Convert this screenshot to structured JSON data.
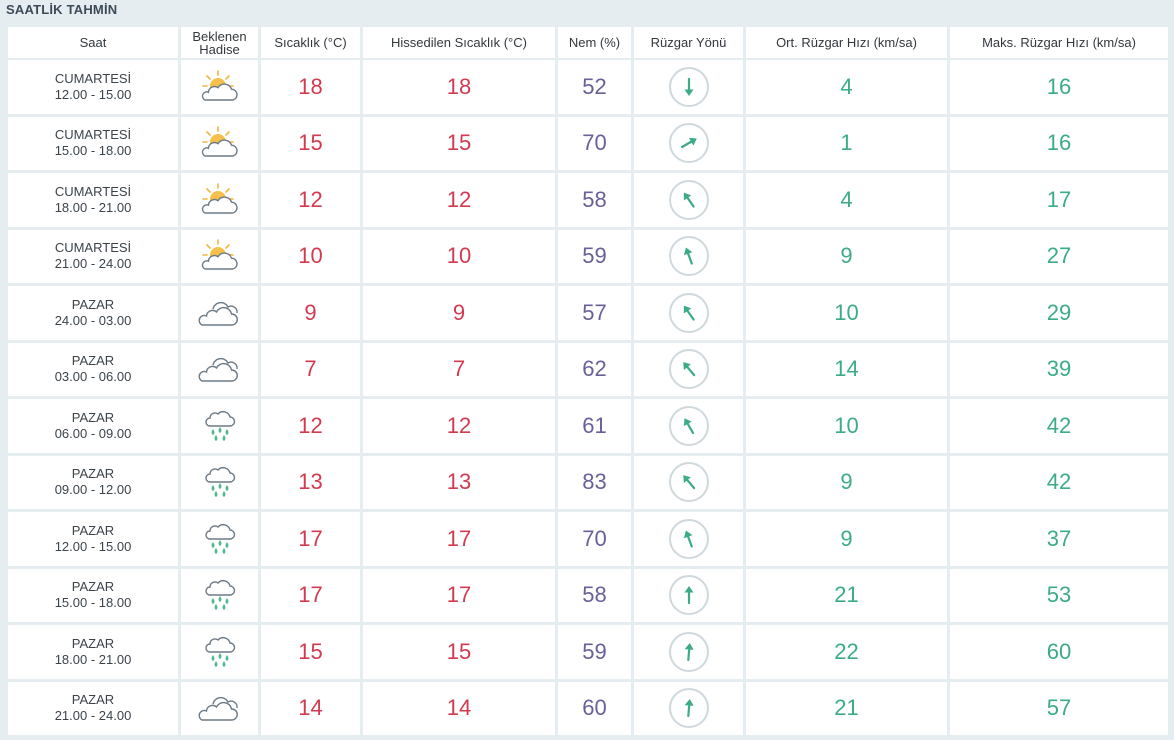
{
  "title": "SAATLİK TAHMİN",
  "headers": {
    "time": "Saat",
    "event_line1": "Beklenen",
    "event_line2": "Hadise",
    "temp": "Sıcaklık (°C)",
    "feels": "Hissedilen Sıcaklık (°C)",
    "humidity": "Nem (%)",
    "wind_dir": "Rüzgar Yönü",
    "avg_wind": "Ort. Rüzgar Hızı (km/sa)",
    "max_wind": "Maks. Rüzgar Hızı (km/sa)"
  },
  "colors": {
    "temp": "#d33a4f",
    "humidity": "#6a5f9a",
    "wind": "#3bab88"
  },
  "rows": [
    {
      "day": "CUMARTESİ",
      "period": "12.00 - 15.00",
      "icon": "partly-cloudy-icon",
      "temp": "18",
      "feels": "18",
      "humidity": "52",
      "wind_deg": 180,
      "avg": "4",
      "max": "16"
    },
    {
      "day": "CUMARTESİ",
      "period": "15.00 - 18.00",
      "icon": "partly-cloudy-icon",
      "temp": "15",
      "feels": "15",
      "humidity": "70",
      "wind_deg": 60,
      "avg": "1",
      "max": "16"
    },
    {
      "day": "CUMARTESİ",
      "period": "18.00 - 21.00",
      "icon": "partly-cloudy-icon",
      "temp": "12",
      "feels": "12",
      "humidity": "58",
      "wind_deg": 325,
      "avg": "4",
      "max": "17"
    },
    {
      "day": "CUMARTESİ",
      "period": "21.00 - 24.00",
      "icon": "partly-cloudy-icon",
      "temp": "10",
      "feels": "10",
      "humidity": "59",
      "wind_deg": 340,
      "avg": "9",
      "max": "27"
    },
    {
      "day": "PAZAR",
      "period": "24.00 - 03.00",
      "icon": "cloudy-icon",
      "temp": "9",
      "feels": "9",
      "humidity": "57",
      "wind_deg": 325,
      "avg": "10",
      "max": "29"
    },
    {
      "day": "PAZAR",
      "period": "03.00 - 06.00",
      "icon": "cloudy-icon",
      "temp": "7",
      "feels": "7",
      "humidity": "62",
      "wind_deg": 320,
      "avg": "14",
      "max": "39"
    },
    {
      "day": "PAZAR",
      "period": "06.00 - 09.00",
      "icon": "rain-icon",
      "temp": "12",
      "feels": "12",
      "humidity": "61",
      "wind_deg": 330,
      "avg": "10",
      "max": "42"
    },
    {
      "day": "PAZAR",
      "period": "09.00 - 12.00",
      "icon": "rain-icon",
      "temp": "13",
      "feels": "13",
      "humidity": "83",
      "wind_deg": 320,
      "avg": "9",
      "max": "42"
    },
    {
      "day": "PAZAR",
      "period": "12.00 - 15.00",
      "icon": "rain-icon",
      "temp": "17",
      "feels": "17",
      "humidity": "70",
      "wind_deg": 340,
      "avg": "9",
      "max": "37"
    },
    {
      "day": "PAZAR",
      "period": "15.00 - 18.00",
      "icon": "rain-icon",
      "temp": "17",
      "feels": "17",
      "humidity": "58",
      "wind_deg": 0,
      "avg": "21",
      "max": "53"
    },
    {
      "day": "PAZAR",
      "period": "18.00 - 21.00",
      "icon": "rain-icon",
      "temp": "15",
      "feels": "15",
      "humidity": "59",
      "wind_deg": 5,
      "avg": "22",
      "max": "60"
    },
    {
      "day": "PAZAR",
      "period": "21.00 - 24.00",
      "icon": "cloudy-icon",
      "temp": "14",
      "feels": "14",
      "humidity": "60",
      "wind_deg": 5,
      "avg": "21",
      "max": "57"
    }
  ]
}
